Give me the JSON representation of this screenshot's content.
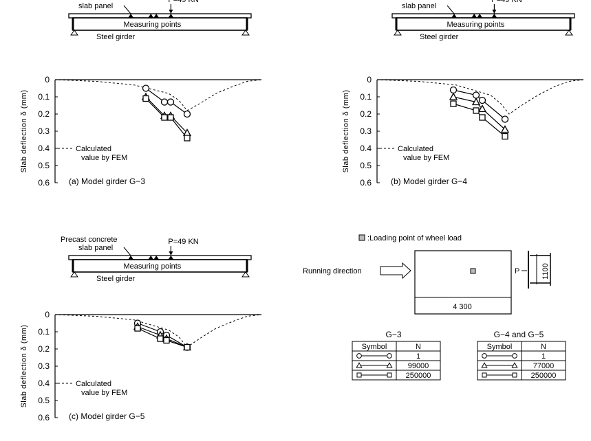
{
  "figure_labels": {
    "load": "P=49 KN",
    "slab": "Precast concrete\nslab panel",
    "measuring": "Measuring points",
    "girder": "Steel girder",
    "fem": "Calculated\nvalue by FEM",
    "ylabel": "Slab deflection  δ (mm)"
  },
  "legend_box": {
    "loading_point": "Loading point of wheel load",
    "running_direction": "Running direction",
    "p_label": "P",
    "width": "4 300",
    "height": "1100"
  },
  "tables": [
    {
      "title": "G−3",
      "headers": [
        "Symbol",
        "N"
      ],
      "rows": [
        {
          "symbol": "circle",
          "n": "1"
        },
        {
          "symbol": "triangle",
          "n": "99000"
        },
        {
          "symbol": "square",
          "n": "250000"
        }
      ]
    },
    {
      "title": "G−4 and G−5",
      "headers": [
        "Symbol",
        "N"
      ],
      "rows": [
        {
          "symbol": "circle",
          "n": "1"
        },
        {
          "symbol": "triangle",
          "n": "77000"
        },
        {
          "symbol": "square",
          "n": "250000"
        }
      ]
    }
  ],
  "chart_data": [
    {
      "type": "line",
      "caption": "(a) Model girder G−3",
      "ylabel": "Slab deflection δ (mm)",
      "yticks": [
        "0",
        "0.1",
        "0.2",
        "0.3",
        "0.4",
        "0.5",
        "0.6"
      ],
      "ylim": [
        0,
        0.6
      ],
      "xlim": [
        0,
        100
      ],
      "fem": {
        "x": [
          0,
          20,
          38,
          55,
          60,
          64,
          70,
          78,
          86,
          93,
          100
        ],
        "y": [
          0,
          0.01,
          0.03,
          0.08,
          0.12,
          0.18,
          0.14,
          0.08,
          0.04,
          0.01,
          0
        ]
      },
      "series": [
        {
          "marker": "circle",
          "x": [
            44,
            53,
            56,
            64
          ],
          "y": [
            0.05,
            0.13,
            0.13,
            0.2
          ]
        },
        {
          "marker": "triangle",
          "x": [
            44,
            53,
            56,
            64
          ],
          "y": [
            0.1,
            0.21,
            0.21,
            0.31
          ]
        },
        {
          "marker": "square",
          "x": [
            44,
            53,
            56,
            64
          ],
          "y": [
            0.11,
            0.22,
            0.22,
            0.34
          ]
        }
      ]
    },
    {
      "type": "line",
      "caption": "(b) Model girder G−4",
      "ylabel": "Slab deflection δ (mm)",
      "yticks": [
        "0",
        "0.1",
        "0.2",
        "0.3",
        "0.4",
        "0.5",
        "0.6"
      ],
      "ylim": [
        0,
        0.6
      ],
      "xlim": [
        0,
        100
      ],
      "fem": {
        "x": [
          0,
          20,
          38,
          55,
          60,
          64,
          70,
          78,
          86,
          93,
          100
        ],
        "y": [
          0,
          0.01,
          0.03,
          0.09,
          0.14,
          0.2,
          0.15,
          0.09,
          0.04,
          0.01,
          0
        ]
      },
      "series": [
        {
          "marker": "circle",
          "x": [
            37,
            48,
            51,
            62
          ],
          "y": [
            0.06,
            0.09,
            0.12,
            0.23
          ]
        },
        {
          "marker": "triangle",
          "x": [
            37,
            48,
            51,
            62
          ],
          "y": [
            0.1,
            0.13,
            0.17,
            0.29
          ]
        },
        {
          "marker": "square",
          "x": [
            37,
            48,
            51,
            62
          ],
          "y": [
            0.14,
            0.18,
            0.22,
            0.33
          ]
        }
      ]
    },
    {
      "type": "line",
      "caption": "(c) Model girder G−5",
      "ylabel": "Slab deflection δ (mm)",
      "yticks": [
        "0",
        "0.1",
        "0.2",
        "0.3",
        "0.4",
        "0.5",
        "0.6"
      ],
      "ylim": [
        0,
        0.6
      ],
      "xlim": [
        0,
        100
      ],
      "fem": {
        "x": [
          0,
          20,
          38,
          55,
          60,
          64,
          70,
          78,
          86,
          93,
          100
        ],
        "y": [
          0,
          0.01,
          0.03,
          0.09,
          0.13,
          0.19,
          0.14,
          0.08,
          0.04,
          0.01,
          0
        ]
      },
      "series": [
        {
          "marker": "circle",
          "x": [
            40,
            51,
            54,
            64
          ],
          "y": [
            0.05,
            0.1,
            0.12,
            0.19
          ]
        },
        {
          "marker": "triangle",
          "x": [
            40,
            51,
            54,
            64
          ],
          "y": [
            0.07,
            0.12,
            0.14,
            0.19
          ]
        },
        {
          "marker": "square",
          "x": [
            40,
            51,
            54,
            64
          ],
          "y": [
            0.08,
            0.14,
            0.15,
            0.19
          ]
        }
      ]
    }
  ]
}
